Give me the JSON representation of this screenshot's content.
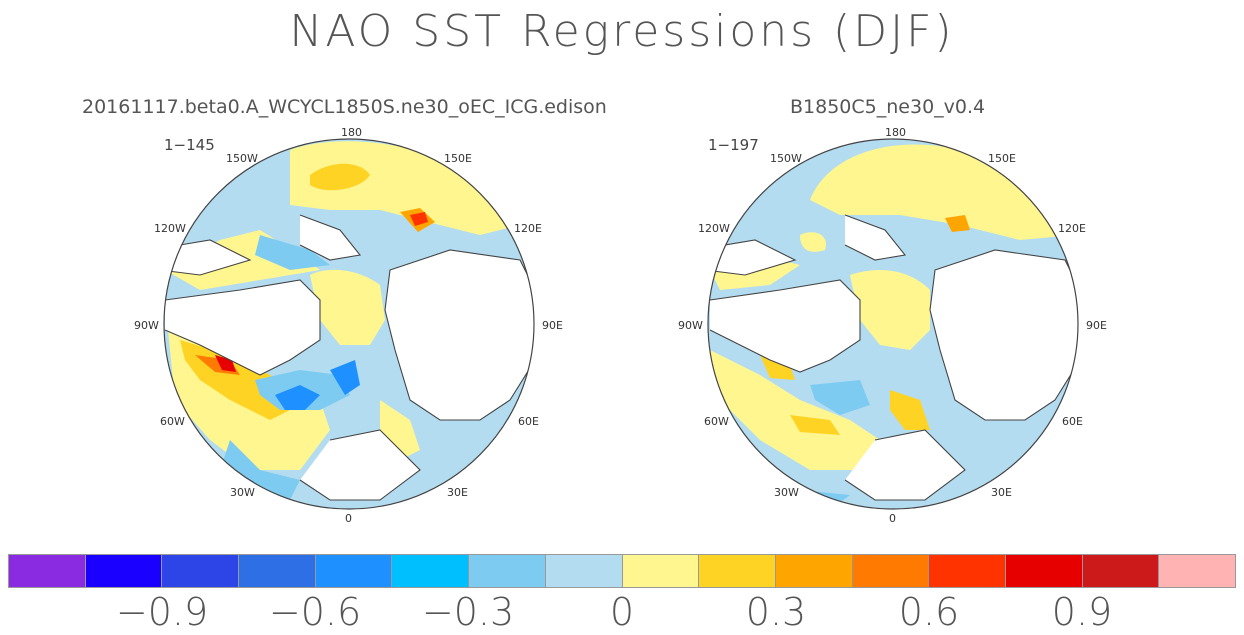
{
  "title": "NAO SST Regressions (DJF)",
  "colors": {
    "land": "#ffffff",
    "coast": "#444444",
    "bar": [
      "#8a2be2",
      "#1a00ff",
      "#2d45e6",
      "#2e6fe6",
      "#1e90ff",
      "#00bfff",
      "#7ecbf2",
      "#b3dcf1",
      "#fff68f",
      "#ffd324",
      "#ffa500",
      "#ff7a00",
      "#ff3300",
      "#e60000",
      "#cc1a1a",
      "#ffb3b3"
    ]
  },
  "colorbar": {
    "labels": [
      "−0.9",
      "−0.6",
      "−0.3",
      "0",
      "0.3",
      "0.6",
      "0.9"
    ]
  },
  "panels": [
    {
      "name": "20161117.beta0.A_WCYCL1850S.ne30_oEC_ICG.edison",
      "range": "1−145",
      "lon_labels": {
        "n180": "180",
        "w150": "150W",
        "e150": "150E",
        "w120": "120W",
        "e120": "120E",
        "w90": "90W",
        "e90": "90E",
        "w60": "60W",
        "e60": "60E",
        "w30": "30W",
        "e30": "30E",
        "s0": "0"
      }
    },
    {
      "name": "B1850C5_ne30_v0.4",
      "range": "1−197",
      "lon_labels": {
        "n180": "180",
        "w150": "150W",
        "e150": "150E",
        "w120": "120W",
        "e120": "120E",
        "w90": "90W",
        "e90": "90E",
        "w60": "60W",
        "e60": "60E",
        "w30": "30W",
        "e30": "30E",
        "s0": "0"
      }
    }
  ]
}
